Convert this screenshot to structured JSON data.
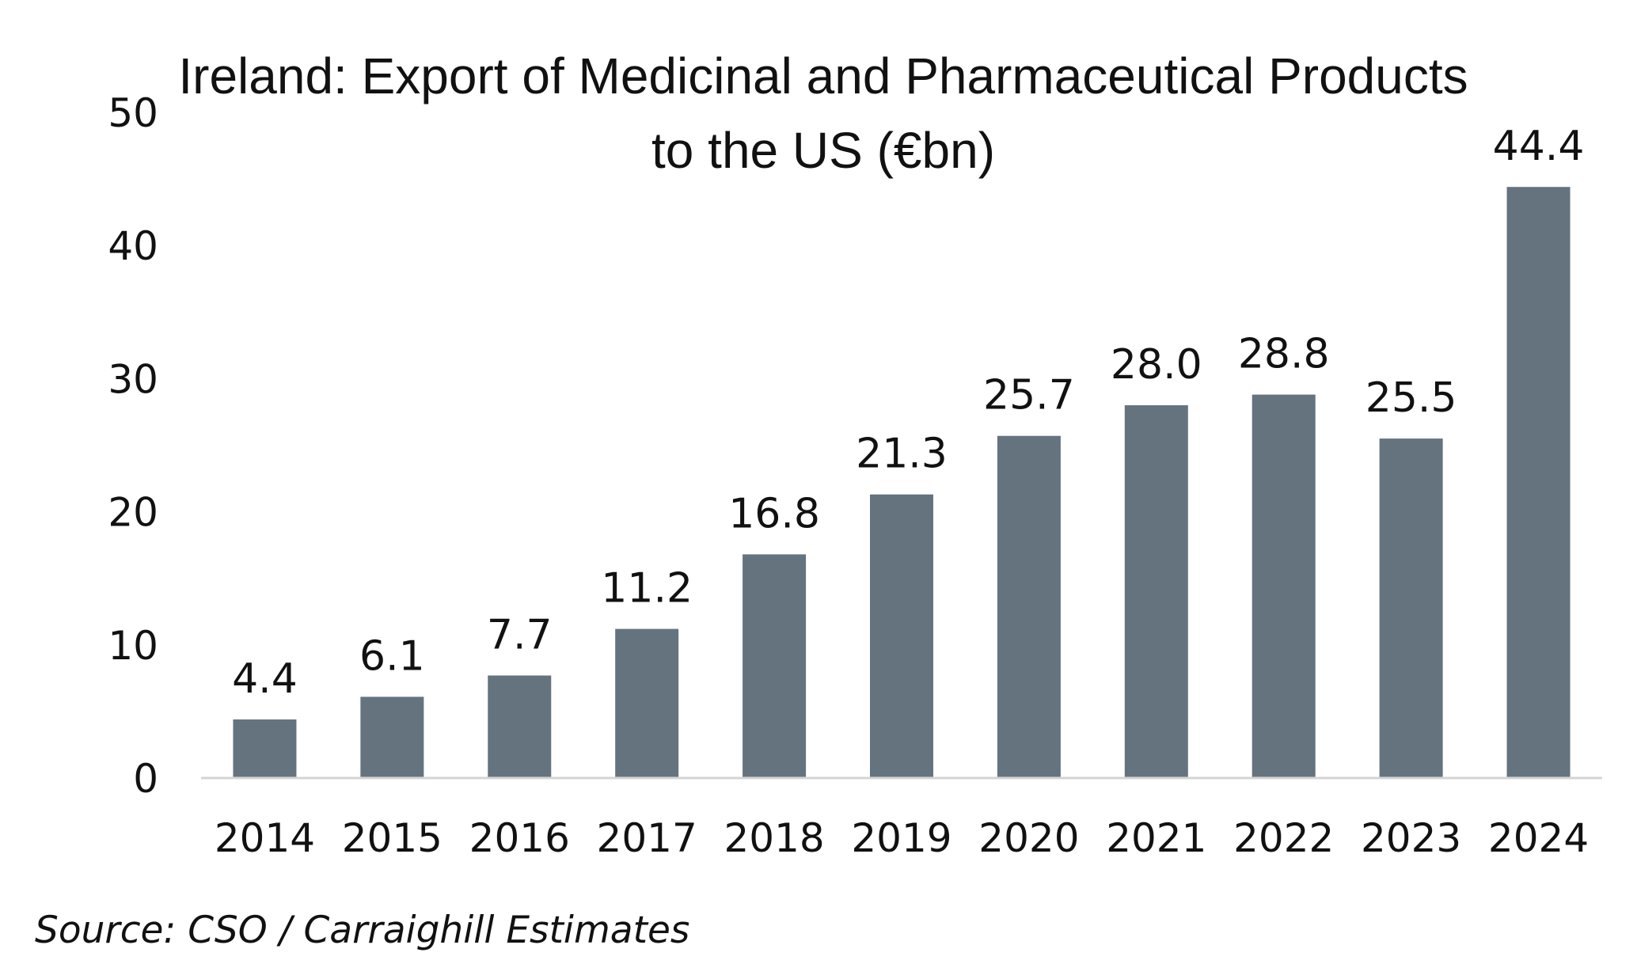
{
  "chart_data": {
    "type": "bar",
    "title_lines": [
      "Ireland: Export of Medicinal and Pharmaceutical Products",
      "to the US (€bn)"
    ],
    "categories": [
      "2014",
      "2015",
      "2016",
      "2017",
      "2018",
      "2019",
      "2020",
      "2021",
      "2022",
      "2023",
      "2024"
    ],
    "values": [
      4.4,
      6.1,
      7.7,
      11.2,
      16.8,
      21.3,
      25.7,
      28.0,
      28.8,
      25.5,
      44.4
    ],
    "value_labels": [
      "4.4",
      "6.1",
      "7.7",
      "11.2",
      "16.8",
      "21.3",
      "25.7",
      "28.0",
      "28.8",
      "25.5",
      "44.4"
    ],
    "ylim": [
      0,
      50
    ],
    "yticks": [
      0,
      10,
      20,
      30,
      40,
      50
    ],
    "ytick_labels": [
      "0",
      "10",
      "20",
      "30",
      "40",
      "50"
    ],
    "xlabel": "",
    "ylabel": "",
    "grid": false,
    "bar_color": "#65737f"
  },
  "source": "Source: CSO / Carraighill Estimates"
}
